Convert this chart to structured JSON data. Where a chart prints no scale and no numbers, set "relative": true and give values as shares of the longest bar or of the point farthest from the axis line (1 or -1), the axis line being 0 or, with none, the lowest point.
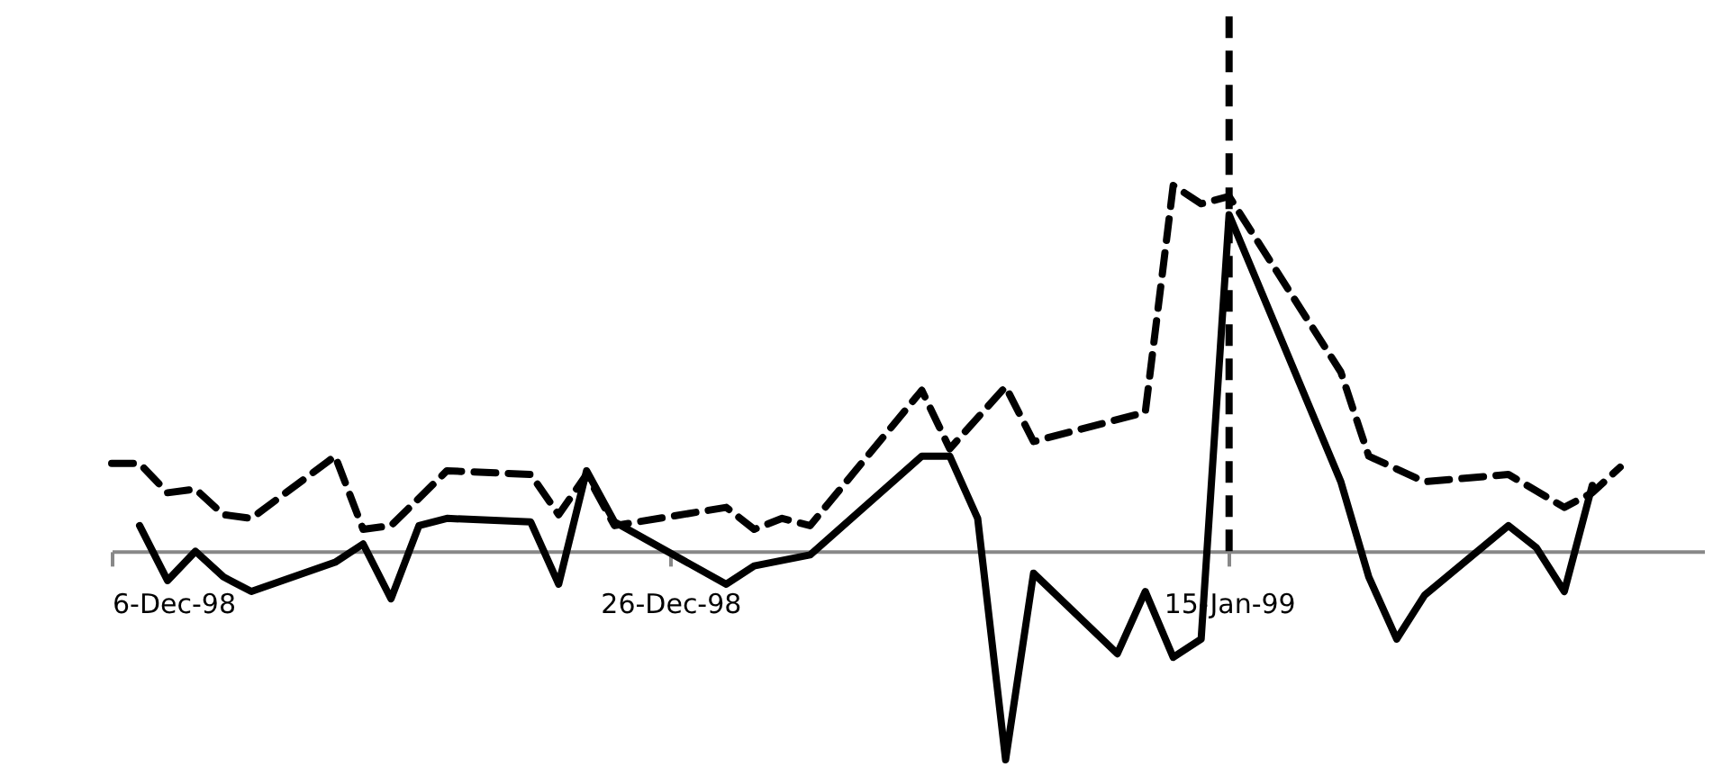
{
  "chart_data": {
    "type": "line",
    "relative": true,
    "xlim": [
      "1998-12-06",
      "1999-02-01"
    ],
    "xticks": [
      {
        "value": "1998-12-06",
        "label": "6-Dec-98"
      },
      {
        "value": "1998-12-26",
        "label": "26-Dec-98"
      },
      {
        "value": "1999-01-15",
        "label": "15-Jan-99"
      }
    ],
    "grid": false,
    "legend": false,
    "marker": "none",
    "series": [
      {
        "color": "#000000",
        "line_style": "solid",
        "x": [
          "1998-12-07",
          "1998-12-08",
          "1998-12-09",
          "1998-12-10",
          "1998-12-11",
          "1998-12-14",
          "1998-12-15",
          "1998-12-16",
          "1998-12-17",
          "1998-12-18",
          "1998-12-21",
          "1998-12-22",
          "1998-12-23",
          "1998-12-24",
          "1998-12-28",
          "1998-12-29",
          "1998-12-31",
          "1999-01-04",
          "1999-01-05",
          "1999-01-06",
          "1999-01-07",
          "1999-01-08",
          "1999-01-11",
          "1999-01-12",
          "1999-01-13",
          "1999-01-14",
          "1999-01-15",
          "1999-01-19",
          "1999-01-20",
          "1999-01-21",
          "1999-01-22",
          "1999-01-25",
          "1999-01-26",
          "1999-01-27",
          "1999-01-28"
        ],
        "values": [
          0.07,
          -0.08,
          0.0,
          -0.07,
          -0.11,
          -0.03,
          0.02,
          -0.13,
          0.07,
          0.09,
          0.08,
          -0.09,
          0.22,
          0.08,
          -0.09,
          -0.04,
          -0.01,
          0.26,
          0.26,
          0.09,
          -0.57,
          -0.06,
          -0.28,
          -0.11,
          -0.29,
          -0.24,
          0.92,
          0.19,
          -0.07,
          -0.24,
          -0.12,
          0.07,
          0.01,
          -0.11,
          0.18
        ]
      },
      {
        "color": "#000000",
        "line_style": "dashed",
        "x": [
          "1998-12-06",
          "1998-12-07",
          "1998-12-08",
          "1998-12-09",
          "1998-12-10",
          "1998-12-11",
          "1998-12-14",
          "1998-12-15",
          "1998-12-16",
          "1998-12-18",
          "1998-12-21",
          "1998-12-22",
          "1998-12-23",
          "1998-12-24",
          "1998-12-28",
          "1998-12-29",
          "1998-12-30",
          "1998-12-31",
          "1999-01-04",
          "1999-01-05",
          "1999-01-07",
          "1999-01-08",
          "1999-01-12",
          "1999-01-13",
          "1999-01-14",
          "1999-01-15",
          "1999-01-19",
          "1999-01-20",
          "1999-01-22",
          "1999-01-25",
          "1999-01-27",
          "1999-01-28",
          "1999-01-29"
        ],
        "values": [
          0.24,
          0.24,
          0.16,
          0.17,
          0.1,
          0.09,
          0.26,
          0.06,
          0.07,
          0.22,
          0.21,
          0.1,
          0.21,
          0.07,
          0.12,
          0.06,
          0.09,
          0.07,
          0.44,
          0.28,
          0.45,
          0.3,
          0.38,
          1.0,
          0.95,
          0.97,
          0.49,
          0.26,
          0.19,
          0.21,
          0.12,
          0.16,
          0.23
        ]
      }
    ],
    "ref_lines": [
      {
        "axis": "x",
        "value": "1999-01-15",
        "color": "#000000",
        "line_style": "dashed"
      }
    ]
  }
}
